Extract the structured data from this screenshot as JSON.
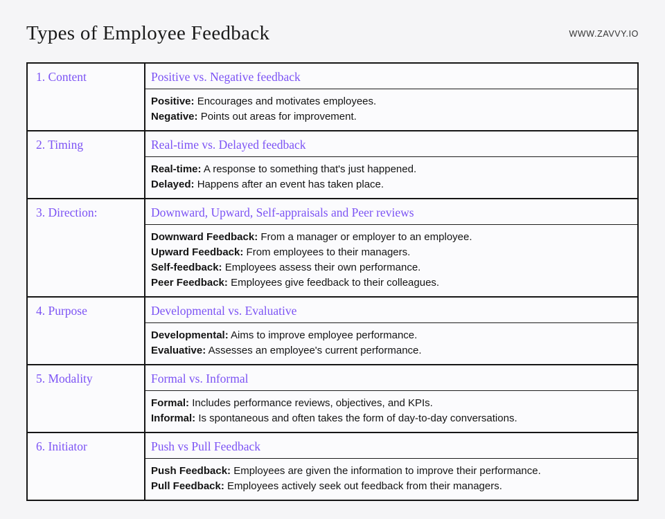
{
  "header": {
    "title": "Types of Employee Feedback",
    "website": "WWW.ZAVVY.IO"
  },
  "colors": {
    "accent_purple": "#7C53F4",
    "border_black": "#161616",
    "body_text": "#141414",
    "page_background": "#F5F5F7",
    "cell_background": "#FBFBFD"
  },
  "table": {
    "rows": [
      {
        "category": "1. Content",
        "heading": "Positive vs. Negative feedback",
        "definitions": [
          {
            "term": "Positive:",
            "text": "Encourages and motivates employees."
          },
          {
            "term": "Negative:",
            "text": "Points out areas for improvement."
          }
        ]
      },
      {
        "category": "2. Timing",
        "heading": "Real-time vs. Delayed feedback",
        "definitions": [
          {
            "term": "Real-time:",
            "text": "A response to something that's just happened."
          },
          {
            "term": "Delayed:",
            "text": "Happens after an event has taken place."
          }
        ]
      },
      {
        "category": "3. Direction:",
        "heading": "Downward, Upward, Self-appraisals and Peer reviews",
        "definitions": [
          {
            "term": "Downward Feedback:",
            "text": "From a manager or employer to an employee."
          },
          {
            "term": "Upward Feedback:",
            "text": "From employees to their managers."
          },
          {
            "term": "Self-feedback:",
            "text": "Employees assess their own performance."
          },
          {
            "term": "Peer Feedback:",
            "text": "Employees give feedback to their colleagues."
          }
        ]
      },
      {
        "category": "4. Purpose",
        "heading": "Developmental vs. Evaluative",
        "definitions": [
          {
            "term": "Developmental:",
            "text": "Aims to improve employee performance."
          },
          {
            "term": "Evaluative:",
            "text": "Assesses an employee's current performance."
          }
        ]
      },
      {
        "category": "5. Modality",
        "heading": "Formal vs. Informal",
        "definitions": [
          {
            "term": "Formal:",
            "text": "Includes performance reviews, objectives, and KPIs."
          },
          {
            "term": "Informal:",
            "text": "Is spontaneous and often takes the form of day-to-day conversations."
          }
        ]
      },
      {
        "category": "6. Initiator",
        "heading": "Push vs Pull Feedback",
        "definitions": [
          {
            "term": "Push Feedback:",
            "text": "Employees are given the information to improve their performance."
          },
          {
            "term": "Pull Feedback:",
            "text": "Employees actively seek out feedback from their managers."
          }
        ]
      }
    ]
  }
}
